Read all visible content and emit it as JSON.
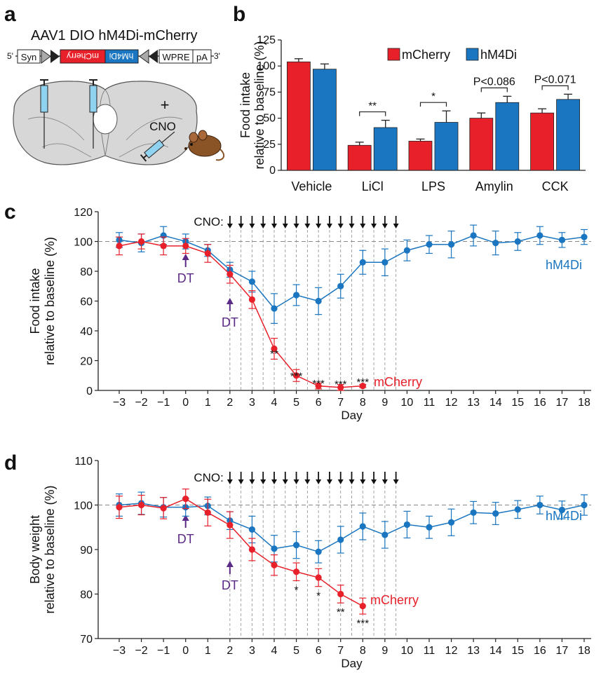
{
  "panels": {
    "a": "a",
    "b": "b",
    "c": "c",
    "d": "d"
  },
  "colors": {
    "mcherry": "#e8202a",
    "hm4di": "#1a76c0",
    "purple": "#5b2a86",
    "axis": "#222222"
  },
  "schematic": {
    "title": "AAV1 DIO hM4Di-mCherry",
    "five_prime": "5'",
    "three_prime": "3'",
    "syn": "Syn",
    "mcherry": "mCherry",
    "hm4di": "hM4Di",
    "wpre": "WPRE",
    "pa": "pA",
    "plus": "+",
    "cno": "CNO"
  },
  "chart_data": [
    {
      "id": "b",
      "type": "bar",
      "categories": [
        "Vehicle",
        "LiCl",
        "LPS",
        "Amylin",
        "CCK"
      ],
      "series": [
        {
          "name": "mCherry",
          "color": "#e8202a",
          "values": [
            104,
            24,
            28,
            50,
            55
          ],
          "errors": [
            3,
            3,
            2,
            5,
            4
          ]
        },
        {
          "name": "hM4Di",
          "color": "#1a76c0",
          "values": [
            97,
            41,
            46,
            65,
            68
          ],
          "errors": [
            5,
            7,
            11,
            6,
            5
          ]
        }
      ],
      "ylabel": [
        "Food intake",
        "relative to baseline (%)"
      ],
      "ylim": [
        0,
        125
      ],
      "yticks": [
        "0",
        "25",
        "50",
        "75",
        "100",
        "125"
      ],
      "legend": {
        "position": "top-right",
        "entries": [
          "mCherry",
          "hM4Di"
        ]
      },
      "annotations": [
        "",
        "**",
        "*",
        "P<0.086",
        "P<0.071"
      ]
    },
    {
      "id": "c",
      "type": "line",
      "x": [
        -3,
        -2,
        -1,
        0,
        1,
        2,
        3,
        4,
        5,
        6,
        7,
        8,
        9,
        10,
        11,
        12,
        13,
        14,
        15,
        16,
        17,
        18
      ],
      "xticks": [
        "−3",
        "−2",
        "−1",
        "0",
        "1",
        "2",
        "3",
        "4",
        "5",
        "6",
        "7",
        "8",
        "9",
        "10",
        "11",
        "12",
        "13",
        "14",
        "15",
        "16",
        "17",
        "18"
      ],
      "series": [
        {
          "name": "hM4Di",
          "color": "#1a76c0",
          "x": [
            -3,
            -2,
            -1,
            0,
            1,
            2,
            3,
            4,
            5,
            6,
            7,
            8,
            9,
            10,
            11,
            12,
            13,
            14,
            15,
            16,
            17,
            18
          ],
          "values": [
            101,
            99,
            104,
            100,
            94,
            81,
            73,
            55,
            64,
            60,
            70,
            86,
            86,
            94,
            98,
            98,
            104,
            99,
            100,
            104,
            101,
            103
          ],
          "errors": [
            5,
            6,
            6,
            5,
            4,
            5,
            7,
            10,
            7,
            9,
            8,
            8,
            9,
            7,
            6,
            9,
            7,
            8,
            6,
            6,
            5,
            5
          ]
        },
        {
          "name": "mCherry",
          "color": "#e8202a",
          "x": [
            -3,
            -2,
            -1,
            0,
            1,
            2,
            3,
            4,
            5,
            6,
            7,
            8
          ],
          "values": [
            97,
            100,
            97,
            97,
            92,
            78,
            61,
            28,
            10,
            3,
            2,
            3
          ],
          "errors": [
            6,
            5,
            6,
            5,
            6,
            6,
            6,
            7,
            4,
            2,
            2,
            1
          ]
        }
      ],
      "xlabel": "Day",
      "ylabel": [
        "Food intake",
        "relative to baseline (%)"
      ],
      "ylim": [
        0,
        120
      ],
      "yticks": [
        "0",
        "20",
        "40",
        "60",
        "80",
        "100",
        "120"
      ],
      "baseline": 100,
      "cno_label": "CNO:",
      "cno_times": [
        2,
        2.5,
        3,
        3.5,
        4,
        4.5,
        5,
        5.5,
        6,
        6.5,
        7,
        7.5,
        8,
        8.5,
        9,
        9.5
      ],
      "dt_days": [
        0,
        2
      ],
      "dt_label": "DT",
      "significance": [
        {
          "x": 4,
          "text": "**"
        },
        {
          "x": 5,
          "text": "***"
        },
        {
          "x": 6,
          "text": "***"
        },
        {
          "x": 7,
          "text": "***"
        },
        {
          "x": 8,
          "text": "***"
        }
      ],
      "series_labels": {
        "hM4Di": "hM4Di",
        "mCherry": "mCherry"
      }
    },
    {
      "id": "d",
      "type": "line",
      "x": [
        -3,
        -2,
        -1,
        0,
        1,
        2,
        3,
        4,
        5,
        6,
        7,
        8,
        9,
        10,
        11,
        12,
        13,
        14,
        15,
        16,
        17,
        18
      ],
      "xticks": [
        "−3",
        "−2",
        "−1",
        "0",
        "1",
        "2",
        "3",
        "4",
        "5",
        "6",
        "7",
        "8",
        "9",
        "10",
        "11",
        "12",
        "13",
        "14",
        "15",
        "16",
        "17",
        "18"
      ],
      "series": [
        {
          "name": "hM4Di",
          "color": "#1a76c0",
          "x": [
            -3,
            -2,
            -1,
            0,
            1,
            2,
            3,
            4,
            5,
            6,
            7,
            8,
            9,
            10,
            11,
            12,
            13,
            14,
            15,
            16,
            17,
            18
          ],
          "values": [
            100,
            100.4,
            99.5,
            99.5,
            99.8,
            96.5,
            94.5,
            90.2,
            91,
            89.5,
            92.2,
            95.2,
            93.3,
            95.6,
            95,
            96.1,
            98.3,
            98.1,
            99,
            100,
            98.9,
            100
          ],
          "errors": [
            2.5,
            2.5,
            2.2,
            2,
            2,
            2,
            3,
            3,
            3,
            2.5,
            3,
            3,
            3,
            3,
            2.5,
            3,
            2.5,
            2.5,
            2,
            2,
            2,
            2.3
          ]
        },
        {
          "name": "mCherry",
          "color": "#e8202a",
          "x": [
            -3,
            -2,
            -1,
            0,
            1,
            2,
            3,
            4,
            5,
            6,
            7,
            8
          ],
          "values": [
            99.5,
            100,
            99.3,
            101.4,
            98.3,
            95.5,
            90,
            86.5,
            85,
            83.7,
            80,
            77.3
          ],
          "errors": [
            2.5,
            2.2,
            2.4,
            2.2,
            3,
            3,
            2.5,
            2.3,
            2,
            2,
            2,
            1.8
          ]
        }
      ],
      "xlabel": "Day",
      "ylabel": [
        "Body weight",
        "relative to baseline (%)"
      ],
      "ylim": [
        70,
        110
      ],
      "yticks": [
        "70",
        "80",
        "90",
        "100",
        "110"
      ],
      "baseline": 100,
      "cno_label": "CNO:",
      "cno_times": [
        2,
        2.5,
        3,
        3.5,
        4,
        4.5,
        5,
        5.5,
        6,
        6.5,
        7,
        7.5,
        8,
        8.5,
        9,
        9.5
      ],
      "dt_days": [
        0,
        2
      ],
      "dt_label": "DT",
      "significance": [
        {
          "x": 5,
          "text": "*"
        },
        {
          "x": 6,
          "text": "*"
        },
        {
          "x": 7,
          "text": "**"
        },
        {
          "x": 8,
          "text": "***"
        }
      ],
      "series_labels": {
        "hM4Di": "hM4Di",
        "mCherry": "mCherry"
      }
    }
  ]
}
